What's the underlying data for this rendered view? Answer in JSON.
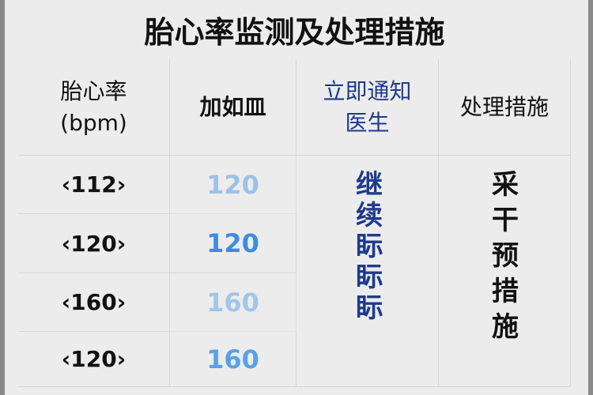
{
  "title": "胎心率监测及处理措施",
  "headers": [
    "胎心率\n(bpm)",
    "加如皿",
    "立即通知\n医生",
    "处理措施"
  ],
  "rows": [
    {
      "rate": "‹112›",
      "value": "120"
    },
    {
      "rate": "‹120›",
      "value": "120"
    },
    {
      "rate": "‹160›",
      "value": "160"
    },
    {
      "rate": "‹120›",
      "value": "160"
    }
  ],
  "col3_merged": "继续眎眎眎",
  "col4_merged": "采干预措施",
  "colors": {
    "header_blue": "#1f3a8a",
    "value_blue": "#5aa0e6"
  }
}
